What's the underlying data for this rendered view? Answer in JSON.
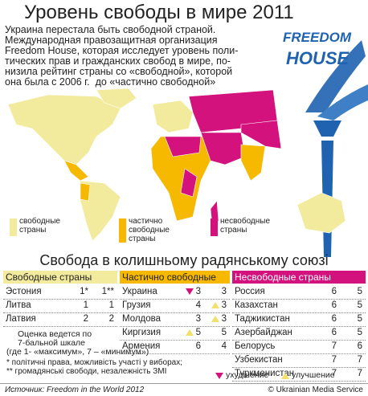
{
  "header": {
    "title": "Уровень свободы в мире 2011",
    "intro": [
      "Украина перестала быть свободной страной.",
      "Международная правозащитная организация",
      "Freedom House, которая исследует уровень поли-",
      "тических прав и гражданских свобод в мире, по-",
      "низила рейтинг страны со «свободной», которой",
      "она была с 2006 г.  до «частично свободной»"
    ],
    "logo": [
      "FREEDOM",
      "HOUSE"
    ]
  },
  "map_legend": [
    {
      "label": "свободные\nстраны",
      "color": "#f2ea9c"
    },
    {
      "label": "частично\nсвободные\nстраны",
      "color": "#f7b800"
    },
    {
      "label": "несвободные\nстраны",
      "color": "#d4127e"
    }
  ],
  "section_title": "Свобода в колишньому радянському союзі",
  "tables": [
    {
      "header": "Свободные страны",
      "color": "#f2ea9c",
      "rows": [
        {
          "country": "Эстония",
          "pr": "1*",
          "cl": "1**"
        },
        {
          "country": "Литва",
          "pr": "1",
          "cl": "1"
        },
        {
          "country": "Латвия",
          "pr": "2",
          "cl": "2"
        }
      ]
    },
    {
      "header": "Частично свободные",
      "color": "#f7b800",
      "rows": [
        {
          "country": "Украина",
          "pr": "3",
          "cl": "3",
          "pr_trend": "down"
        },
        {
          "country": "Грузия",
          "pr": "4",
          "cl": "3",
          "cl_trend": "up"
        },
        {
          "country": "Молдова",
          "pr": "3",
          "cl": "3",
          "cl_trend": "up"
        },
        {
          "country": "Киргизия",
          "pr": "5",
          "cl": "5",
          "pr_trend": "up"
        },
        {
          "country": "Армения",
          "pr": "6",
          "cl": "4"
        }
      ]
    },
    {
      "header": "Несвободные страны",
      "color": "#d4127e",
      "rows": [
        {
          "country": "Россия",
          "pr": "6",
          "cl": "5"
        },
        {
          "country": "Казахстан",
          "pr": "6",
          "cl": "5"
        },
        {
          "country": "Таджикистан",
          "pr": "6",
          "cl": "5"
        },
        {
          "country": "Азербайджан",
          "pr": "6",
          "cl": "5"
        },
        {
          "country": "Белорусь",
          "pr": "7",
          "cl": "6"
        },
        {
          "country": "Узбекистан",
          "pr": "7",
          "cl": "7"
        },
        {
          "country": "Туркменистан",
          "pr": "7",
          "cl": "7"
        }
      ]
    }
  ],
  "trend_legend": {
    "down": "ухудшение",
    "up": "улучшение"
  },
  "notes": [
    "Оценка ведется по",
    "7-бальной шкале",
    "(где 1- «максимум», 7 – «минимум»)",
    "* політичні права, можливість участі у виборах;",
    "** громадянські свободи, незалежність ЗМІ"
  ],
  "footer": {
    "source": "Источник: Freedom in the World 2012",
    "credit": "© Ukrainian Media Service"
  }
}
